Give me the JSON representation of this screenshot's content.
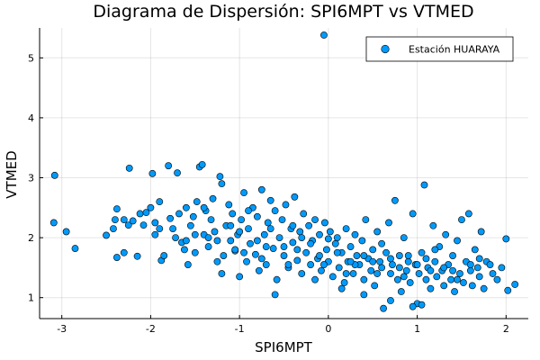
{
  "chart_data": {
    "type": "scatter",
    "title": "Diagrama de Dispersión: SPI6MPT vs VTMED",
    "xlabel": "SPI6MPT",
    "ylabel": "VTMED",
    "xlim": [
      -3.25,
      2.25
    ],
    "ylim": [
      0.65,
      5.5
    ],
    "xticks": [
      -3,
      -2,
      -1,
      0,
      1,
      2
    ],
    "yticks": [
      1,
      2,
      3,
      4,
      5
    ],
    "xtick_labels": [
      "-3",
      "-2",
      "-1",
      "0",
      "1",
      "2"
    ],
    "ytick_labels": [
      "1",
      "2",
      "3",
      "4",
      "5"
    ],
    "grid": true,
    "legend_position": "top-right",
    "marker_color": "#009AFA",
    "series": [
      {
        "name": "Estación HUARAYA",
        "points": [
          [
            -3.08,
            3.04
          ],
          [
            -3.09,
            2.25
          ],
          [
            -2.95,
            2.1
          ],
          [
            -2.85,
            1.82
          ],
          [
            -2.5,
            2.04
          ],
          [
            -2.42,
            2.15
          ],
          [
            -2.4,
            2.3
          ],
          [
            -2.38,
            2.48
          ],
          [
            -2.38,
            1.67
          ],
          [
            -2.3,
            1.75
          ],
          [
            -2.25,
            2.21
          ],
          [
            -2.24,
            3.16
          ],
          [
            -2.2,
            2.28
          ],
          [
            -2.15,
            1.69
          ],
          [
            -2.12,
            2.4
          ],
          [
            -2.08,
            2.21
          ],
          [
            -2.05,
            2.42
          ],
          [
            -2.0,
            2.5
          ],
          [
            -1.98,
            3.07
          ],
          [
            -1.95,
            2.25
          ],
          [
            -1.95,
            2.05
          ],
          [
            -1.9,
            2.6
          ],
          [
            -1.88,
            1.62
          ],
          [
            -1.85,
            1.7
          ],
          [
            -1.8,
            3.2
          ],
          [
            -1.78,
            2.32
          ],
          [
            -1.75,
            2.15
          ],
          [
            -1.72,
            2.0
          ],
          [
            -1.7,
            3.08
          ],
          [
            -1.68,
            2.4
          ],
          [
            -1.65,
            1.92
          ],
          [
            -1.62,
            1.8
          ],
          [
            -1.6,
            2.5
          ],
          [
            -1.58,
            1.55
          ],
          [
            -1.55,
            2.2
          ],
          [
            -1.52,
            2.35
          ],
          [
            -1.5,
            1.75
          ],
          [
            -1.48,
            2.6
          ],
          [
            -1.45,
            3.18
          ],
          [
            -1.42,
            3.22
          ],
          [
            -1.4,
            2.05
          ],
          [
            -1.38,
            2.45
          ],
          [
            -1.35,
            1.85
          ],
          [
            -1.32,
            2.3
          ],
          [
            -1.3,
            2.65
          ],
          [
            -1.28,
            2.1
          ],
          [
            -1.25,
            1.6
          ],
          [
            -1.22,
            3.02
          ],
          [
            -1.2,
            2.9
          ],
          [
            -1.18,
            1.7
          ],
          [
            -1.15,
            2.2
          ],
          [
            -1.12,
            2.55
          ],
          [
            -1.1,
            1.95
          ],
          [
            -1.08,
            2.4
          ],
          [
            -1.05,
            1.78
          ],
          [
            -1.02,
            2.05
          ],
          [
            -1.0,
            1.35
          ],
          [
            -0.98,
            2.3
          ],
          [
            -0.95,
            2.75
          ],
          [
            -0.92,
            1.6
          ],
          [
            -0.9,
            2.15
          ],
          [
            -0.88,
            1.9
          ],
          [
            -0.85,
            2.5
          ],
          [
            -0.82,
            1.72
          ],
          [
            -0.8,
            2.35
          ],
          [
            -0.78,
            1.45
          ],
          [
            -0.75,
            2.8
          ],
          [
            -0.72,
            2.05
          ],
          [
            -0.7,
            1.55
          ],
          [
            -0.68,
            2.25
          ],
          [
            -0.65,
            2.62
          ],
          [
            -0.62,
            1.82
          ],
          [
            -0.6,
            2.45
          ],
          [
            -0.58,
            1.3
          ],
          [
            -0.55,
            2.0
          ],
          [
            -0.52,
            2.3
          ],
          [
            -0.5,
            1.7
          ],
          [
            -0.48,
            2.55
          ],
          [
            -0.45,
            1.5
          ],
          [
            -0.42,
            2.15
          ],
          [
            -0.4,
            1.92
          ],
          [
            -0.38,
            2.68
          ],
          [
            -0.35,
            1.62
          ],
          [
            -0.32,
            2.1
          ],
          [
            -0.3,
            1.4
          ],
          [
            -0.28,
            2.4
          ],
          [
            -0.25,
            1.75
          ],
          [
            -0.22,
            2.2
          ],
          [
            -0.2,
            1.55
          ],
          [
            -0.18,
            1.95
          ],
          [
            -0.15,
            2.3
          ],
          [
            -0.12,
            1.65
          ],
          [
            -0.1,
            2.05
          ],
          [
            -0.08,
            1.45
          ],
          [
            -0.05,
            5.38
          ],
          [
            -0.04,
            2.25
          ],
          [
            -0.02,
            1.8
          ],
          [
            0.0,
            1.6
          ],
          [
            0.02,
            2.1
          ],
          [
            0.05,
            1.35
          ],
          [
            0.08,
            1.9
          ],
          [
            0.1,
            2.0
          ],
          [
            0.12,
            1.5
          ],
          [
            0.15,
            1.75
          ],
          [
            0.18,
            1.25
          ],
          [
            0.2,
            2.15
          ],
          [
            0.22,
            1.6
          ],
          [
            0.25,
            1.85
          ],
          [
            0.28,
            1.4
          ],
          [
            0.3,
            2.05
          ],
          [
            0.32,
            1.7
          ],
          [
            0.35,
            1.55
          ],
          [
            0.38,
            1.95
          ],
          [
            0.4,
            1.3
          ],
          [
            0.42,
            2.3
          ],
          [
            0.45,
            1.65
          ],
          [
            0.48,
            1.45
          ],
          [
            0.5,
            1.8
          ],
          [
            0.52,
            1.2
          ],
          [
            0.55,
            2.1
          ],
          [
            0.58,
            1.6
          ],
          [
            0.6,
            1.5
          ],
          [
            0.62,
            0.82
          ],
          [
            0.65,
            1.75
          ],
          [
            0.68,
            2.25
          ],
          [
            0.7,
            1.4
          ],
          [
            0.72,
            1.55
          ],
          [
            0.75,
            2.62
          ],
          [
            0.78,
            1.3
          ],
          [
            0.8,
            1.7
          ],
          [
            0.82,
            1.1
          ],
          [
            0.85,
            2.0
          ],
          [
            0.88,
            1.45
          ],
          [
            0.9,
            1.6
          ],
          [
            0.92,
            1.25
          ],
          [
            0.95,
            2.4
          ],
          [
            0.98,
            1.55
          ],
          [
            1.0,
            0.9
          ],
          [
            1.02,
            1.4
          ],
          [
            1.05,
            1.75
          ],
          [
            1.08,
            2.88
          ],
          [
            1.1,
            1.3
          ],
          [
            1.12,
            1.5
          ],
          [
            1.15,
            1.15
          ],
          [
            1.18,
            2.2
          ],
          [
            1.2,
            1.6
          ],
          [
            1.22,
            1.35
          ],
          [
            1.25,
            1.85
          ],
          [
            1.28,
            1.45
          ],
          [
            1.3,
            1.2
          ],
          [
            1.32,
            2.05
          ],
          [
            1.35,
            1.55
          ],
          [
            1.38,
            1.3
          ],
          [
            1.4,
            1.7
          ],
          [
            1.42,
            1.1
          ],
          [
            1.45,
            1.95
          ],
          [
            1.48,
            1.4
          ],
          [
            1.5,
            2.3
          ],
          [
            1.52,
            1.25
          ],
          [
            1.55,
            1.6
          ],
          [
            1.58,
            2.4
          ],
          [
            1.6,
            1.45
          ],
          [
            1.62,
            1.2
          ],
          [
            1.65,
            1.8
          ],
          [
            1.68,
            1.5
          ],
          [
            1.7,
            1.35
          ],
          [
            1.72,
            2.1
          ],
          [
            1.75,
            1.15
          ],
          [
            1.78,
            1.6
          ],
          [
            1.82,
            1.55
          ],
          [
            1.85,
            1.4
          ],
          [
            1.9,
            1.3
          ],
          [
            1.95,
            1.5
          ],
          [
            2.0,
            1.98
          ],
          [
            2.02,
            1.12
          ],
          [
            2.1,
            1.22
          ],
          [
            -1.6,
            1.95
          ],
          [
            -1.2,
            1.4
          ],
          [
            -0.9,
            2.45
          ],
          [
            -0.6,
            1.05
          ],
          [
            -0.3,
            2.0
          ],
          [
            0.0,
            1.98
          ],
          [
            0.3,
            1.55
          ],
          [
            0.6,
            1.9
          ],
          [
            0.9,
            1.7
          ],
          [
            1.2,
            1.8
          ],
          [
            -1.4,
            2.5
          ],
          [
            -1.0,
            2.1
          ],
          [
            -0.7,
            1.85
          ],
          [
            -0.4,
            2.2
          ],
          [
            -0.1,
            1.7
          ],
          [
            0.2,
            1.4
          ],
          [
            0.5,
            1.6
          ],
          [
            0.8,
            1.5
          ],
          [
            1.1,
            1.65
          ],
          [
            1.4,
            1.45
          ],
          [
            1.7,
            1.65
          ],
          [
            -2.3,
            2.3
          ],
          [
            -1.9,
            2.15
          ],
          [
            -1.5,
            2.05
          ],
          [
            -1.1,
            2.2
          ],
          [
            -0.8,
            1.95
          ],
          [
            -0.5,
            1.85
          ],
          [
            -0.2,
            1.9
          ],
          [
            0.1,
            1.75
          ],
          [
            0.4,
            1.7
          ],
          [
            0.7,
            1.65
          ],
          [
            1.0,
            1.55
          ],
          [
            1.3,
            1.5
          ],
          [
            1.6,
            1.55
          ],
          [
            -1.25,
            1.95
          ],
          [
            -0.95,
            1.75
          ],
          [
            -0.65,
            2.15
          ],
          [
            -0.35,
            1.8
          ],
          [
            -0.05,
            1.55
          ],
          [
            0.25,
            1.6
          ],
          [
            0.55,
            1.4
          ],
          [
            0.85,
            1.35
          ],
          [
            1.15,
            1.45
          ],
          [
            1.45,
            1.3
          ],
          [
            0.95,
            0.85
          ],
          [
            1.05,
            0.88
          ],
          [
            0.7,
            0.95
          ],
          [
            0.4,
            1.05
          ],
          [
            0.15,
            1.15
          ],
          [
            -0.15,
            1.3
          ],
          [
            -0.45,
            1.55
          ],
          [
            -0.75,
            1.65
          ],
          [
            -1.05,
            1.8
          ],
          [
            -1.35,
            2.0
          ]
        ]
      }
    ]
  }
}
